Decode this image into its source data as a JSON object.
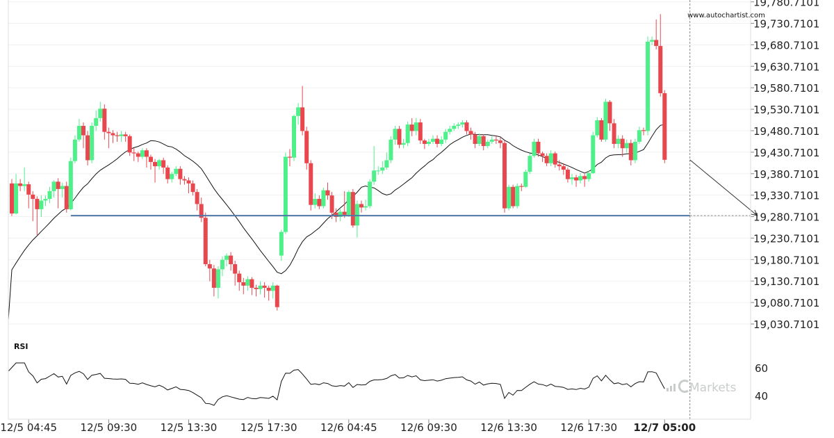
{
  "watermark": "www.autochartist.com",
  "brand": {
    "name": "Markets",
    "icon": "icmarkets-logo-icon"
  },
  "colors": {
    "up": "#4ef08a",
    "down": "#e8474e",
    "support_line": "#4e79a7",
    "ma_line": "#111111",
    "grid": "#f0f0f0",
    "axis": "#dddddd"
  },
  "chart_data": [
    {
      "type": "candlestick",
      "title": "",
      "y_tick_labels": [
        "19,780.7101",
        "19,730.7101",
        "19,680.7101",
        "19,630.7101",
        "19,580.7101",
        "19,530.7101",
        "19,480.7101",
        "19,430.7101",
        "19,380.7101",
        "19,330.7101",
        "19,280.7101",
        "19,230.7101",
        "19,180.7101",
        "19,130.7101",
        "19,080.7101",
        "19,030.7101"
      ],
      "ylim": [
        19000,
        19785
      ],
      "x_tick_labels": [
        "12/5 04:45",
        "12/5 09:30",
        "12/5 13:30",
        "12/5 17:30",
        "12/6 04:45",
        "12/6 09:30",
        "12/6 13:30",
        "12/6 17:30",
        "12/7 05:00"
      ],
      "x_tick_bar_index": [
        4,
        23,
        42,
        61,
        80,
        99,
        118,
        137,
        155
      ],
      "highlighted_x_tick": "12/7 05:00",
      "support_level": 19283,
      "support_start_index": 14,
      "current_bar_index": 161,
      "projection": {
        "from_index": 161,
        "from_value": 19413,
        "to_index": 177,
        "to_value": 19283
      },
      "candles": [
        [
          19358,
          19288,
          19368,
          19282
        ],
        [
          19288,
          19358,
          19380,
          19286
        ],
        [
          19358,
          19352,
          19368,
          19340
        ],
        [
          19352,
          19356,
          19395,
          19340
        ],
        [
          19356,
          19332,
          19362,
          19300
        ],
        [
          19332,
          19322,
          19340,
          19270
        ],
        [
          19322,
          19298,
          19328,
          19238
        ],
        [
          19298,
          19318,
          19330,
          19280
        ],
        [
          19318,
          19322,
          19330,
          19305
        ],
        [
          19322,
          19340,
          19350,
          19312
        ],
        [
          19340,
          19362,
          19365,
          19325
        ],
        [
          19362,
          19345,
          19370,
          19300
        ],
        [
          19345,
          19352,
          19360,
          19325
        ],
        [
          19352,
          19298,
          19362,
          19290
        ],
        [
          19298,
          19410,
          19418,
          19295
        ],
        [
          19410,
          19460,
          19470,
          19405
        ],
        [
          19460,
          19492,
          19508,
          19455
        ],
        [
          19492,
          19470,
          19500,
          19440
        ],
        [
          19470,
          19412,
          19480,
          19400
        ],
        [
          19412,
          19492,
          19500,
          19405
        ],
        [
          19492,
          19510,
          19528,
          19480
        ],
        [
          19510,
          19532,
          19548,
          19502
        ],
        [
          19532,
          19478,
          19542,
          19460
        ],
        [
          19478,
          19475,
          19488,
          19440
        ],
        [
          19475,
          19470,
          19482,
          19452
        ],
        [
          19470,
          19468,
          19478,
          19455
        ],
        [
          19468,
          19472,
          19480,
          19455
        ],
        [
          19472,
          19468,
          19478,
          19455
        ],
        [
          19468,
          19430,
          19472,
          19422
        ],
        [
          19430,
          19428,
          19440,
          19410
        ],
        [
          19428,
          19420,
          19432,
          19408
        ],
        [
          19420,
          19435,
          19440,
          19415
        ],
        [
          19435,
          19420,
          19440,
          19395
        ],
        [
          19420,
          19408,
          19425,
          19390
        ],
        [
          19408,
          19398,
          19415,
          19360
        ],
        [
          19398,
          19412,
          19415,
          19390
        ],
        [
          19412,
          19395,
          19418,
          19380
        ],
        [
          19395,
          19368,
          19400,
          19358
        ],
        [
          19368,
          19380,
          19385,
          19360
        ],
        [
          19380,
          19392,
          19398,
          19375
        ],
        [
          19392,
          19368,
          19398,
          19355
        ],
        [
          19368,
          19365,
          19375,
          19355
        ],
        [
          19365,
          19358,
          19372,
          19335
        ],
        [
          19358,
          19338,
          19365,
          19330
        ],
        [
          19338,
          19310,
          19345,
          19295
        ],
        [
          19310,
          19278,
          19325,
          19268
        ],
        [
          19278,
          19170,
          19290,
          19165
        ],
        [
          19170,
          19160,
          19180,
          19130
        ],
        [
          19160,
          19115,
          19168,
          19095
        ],
        [
          19115,
          19158,
          19165,
          19090
        ],
        [
          19158,
          19180,
          19188,
          19142
        ],
        [
          19180,
          19190,
          19195,
          19165
        ],
        [
          19190,
          19170,
          19198,
          19155
        ],
        [
          19170,
          19148,
          19178,
          19120
        ],
        [
          19148,
          19128,
          19155,
          19108
        ],
        [
          19128,
          19120,
          19138,
          19100
        ],
        [
          19120,
          19135,
          19142,
          19108
        ],
        [
          19135,
          19115,
          19140,
          19098
        ],
        [
          19115,
          19112,
          19122,
          19095
        ],
        [
          19112,
          19120,
          19130,
          19100
        ],
        [
          19120,
          19115,
          19128,
          19092
        ],
        [
          19115,
          19108,
          19120,
          19085
        ],
        [
          19108,
          19120,
          19128,
          19090
        ],
        [
          19120,
          19070,
          19122,
          19062
        ],
        [
          19190,
          19245,
          19250,
          19178
        ],
        [
          19245,
          19420,
          19430,
          19240
        ],
        [
          19420,
          19418,
          19438,
          19398
        ],
        [
          19418,
          19515,
          19518,
          19410
        ],
        [
          19515,
          19535,
          19545,
          19495
        ],
        [
          19535,
          19480,
          19585,
          19470
        ],
        [
          19480,
          19405,
          19490,
          19390
        ],
        [
          19405,
          19308,
          19412,
          19295
        ],
        [
          19308,
          19322,
          19335,
          19300
        ],
        [
          19322,
          19305,
          19330,
          19298
        ],
        [
          19305,
          19342,
          19348,
          19300
        ],
        [
          19342,
          19330,
          19360,
          19320
        ],
        [
          19330,
          19290,
          19338,
          19275
        ],
        [
          19290,
          19280,
          19300,
          19268
        ],
        [
          19280,
          19292,
          19298,
          19270
        ],
        [
          19292,
          19285,
          19340,
          19278
        ],
        [
          19285,
          19338,
          19342,
          19280
        ],
        [
          19338,
          19260,
          19345,
          19255
        ],
        [
          19260,
          19310,
          19318,
          19232
        ],
        [
          19310,
          19302,
          19318,
          19290
        ],
        [
          19302,
          19305,
          19320,
          19295
        ],
        [
          19305,
          19362,
          19368,
          19300
        ],
        [
          19362,
          19388,
          19445,
          19355
        ],
        [
          19388,
          19388,
          19398,
          19378
        ],
        [
          19388,
          19395,
          19410,
          19380
        ],
        [
          19395,
          19412,
          19430,
          19390
        ],
        [
          19412,
          19460,
          19468,
          19405
        ],
        [
          19460,
          19485,
          19492,
          19448
        ],
        [
          19485,
          19448,
          19492,
          19440
        ],
        [
          19448,
          19452,
          19462,
          19440
        ],
        [
          19452,
          19495,
          19502,
          19445
        ],
        [
          19495,
          19480,
          19510,
          19468
        ],
        [
          19480,
          19500,
          19510,
          19470
        ],
        [
          19500,
          19458,
          19508,
          19450
        ],
        [
          19458,
          19450,
          19462,
          19438
        ],
        [
          19450,
          19455,
          19462,
          19445
        ],
        [
          19455,
          19462,
          19470,
          19450
        ],
        [
          19462,
          19450,
          19470,
          19442
        ],
        [
          19450,
          19460,
          19468,
          19445
        ],
        [
          19460,
          19478,
          19485,
          19452
        ],
        [
          19478,
          19485,
          19492,
          19472
        ],
        [
          19485,
          19492,
          19498,
          19480
        ],
        [
          19492,
          19495,
          19500,
          19485
        ],
        [
          19495,
          19500,
          19505,
          19488
        ],
        [
          19500,
          19480,
          19505,
          19472
        ],
        [
          19480,
          19472,
          19488,
          19460
        ],
        [
          19472,
          19450,
          19478,
          19440
        ],
        [
          19450,
          19468,
          19475,
          19445
        ],
        [
          19468,
          19445,
          19472,
          19435
        ],
        [
          19445,
          19455,
          19460,
          19440
        ],
        [
          19455,
          19460,
          19468,
          19450
        ],
        [
          19460,
          19458,
          19470,
          19450
        ],
        [
          19458,
          19452,
          19465,
          19440
        ],
        [
          19452,
          19300,
          19458,
          19290
        ],
        [
          19300,
          19350,
          19355,
          19295
        ],
        [
          19350,
          19305,
          19355,
          19300
        ],
        [
          19305,
          19352,
          19358,
          19300
        ],
        [
          19352,
          19350,
          19358,
          19340
        ],
        [
          19350,
          19385,
          19390,
          19348
        ],
        [
          19385,
          19422,
          19428,
          19380
        ],
        [
          19422,
          19455,
          19462,
          19418
        ],
        [
          19455,
          19428,
          19462,
          19420
        ],
        [
          19428,
          19422,
          19432,
          19408
        ],
        [
          19422,
          19405,
          19428,
          19398
        ],
        [
          19405,
          19428,
          19435,
          19398
        ],
        [
          19428,
          19402,
          19432,
          19395
        ],
        [
          19402,
          19398,
          19412,
          19388
        ],
        [
          19398,
          19390,
          19405,
          19378
        ],
        [
          19390,
          19368,
          19395,
          19360
        ],
        [
          19368,
          19372,
          19380,
          19355
        ],
        [
          19372,
          19365,
          19378,
          19350
        ],
        [
          19365,
          19375,
          19382,
          19358
        ],
        [
          19375,
          19368,
          19380,
          19350
        ],
        [
          19368,
          19382,
          19388,
          19362
        ],
        [
          19382,
          19470,
          19478,
          19380
        ],
        [
          19470,
          19505,
          19512,
          19465
        ],
        [
          19505,
          19460,
          19510,
          19455
        ],
        [
          19460,
          19548,
          19555,
          19455
        ],
        [
          19548,
          19498,
          19552,
          19480
        ],
        [
          19498,
          19450,
          19508,
          19440
        ],
        [
          19450,
          19462,
          19470,
          19440
        ],
        [
          19462,
          19440,
          19470,
          19420
        ],
        [
          19440,
          19452,
          19460,
          19430
        ],
        [
          19452,
          19412,
          19460,
          19400
        ],
        [
          19412,
          19455,
          19462,
          19405
        ],
        [
          19455,
          19482,
          19490,
          19450
        ],
        [
          19482,
          19480,
          19488,
          19470
        ],
        [
          19480,
          19688,
          19700,
          19470
        ],
        [
          19688,
          19692,
          19700,
          19680
        ],
        [
          19692,
          19678,
          19740,
          19670
        ],
        [
          19678,
          19568,
          19752,
          19560
        ],
        [
          19568,
          19413,
          19575,
          19405
        ]
      ]
    },
    {
      "type": "line",
      "title": "RSI",
      "y_tick_labels": [
        "60",
        "40"
      ],
      "ylim": [
        25,
        70
      ]
    }
  ]
}
